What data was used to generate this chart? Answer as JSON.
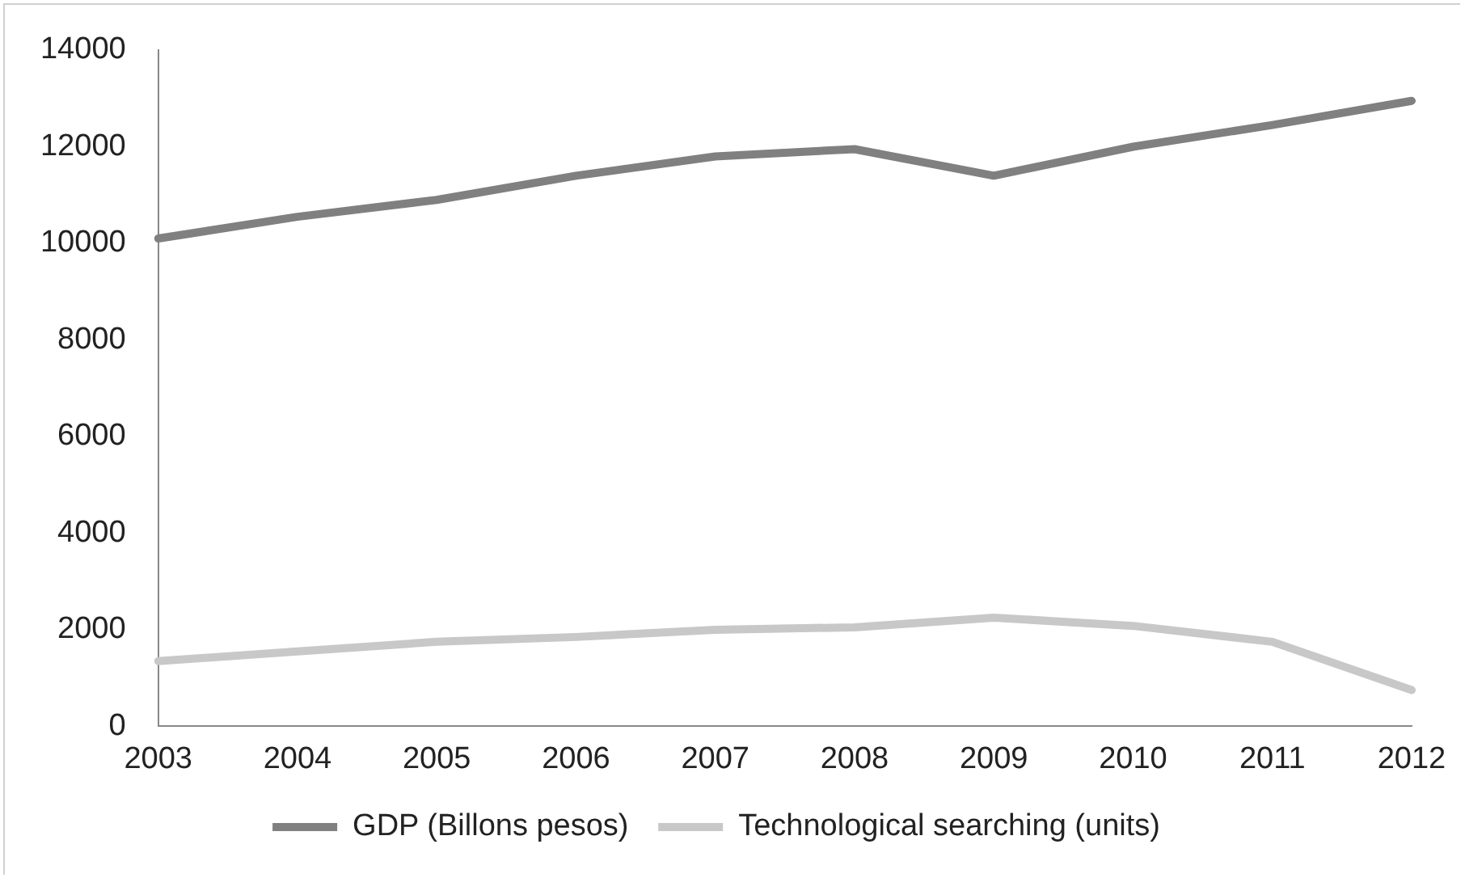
{
  "chart_data": {
    "type": "line",
    "categories": [
      "2003",
      "2004",
      "2005",
      "2006",
      "2007",
      "2008",
      "2009",
      "2010",
      "2011",
      "2012"
    ],
    "series": [
      {
        "name": "GDP (Billons pesos)",
        "color": "#808080",
        "values": [
          10100,
          10550,
          10900,
          11400,
          11800,
          11950,
          11400,
          12000,
          12450,
          12950
        ]
      },
      {
        "name": "Technological searching (units)",
        "color": "#c8c8c8",
        "values": [
          1350,
          1550,
          1750,
          1850,
          2000,
          2050,
          2250,
          2080,
          1750,
          750
        ]
      }
    ],
    "ylim": [
      0,
      14000
    ],
    "yticks": [
      0,
      2000,
      4000,
      6000,
      8000,
      10000,
      12000,
      14000
    ],
    "grid": false,
    "legend": "bottom",
    "marker": "none",
    "line_style": "solid"
  }
}
